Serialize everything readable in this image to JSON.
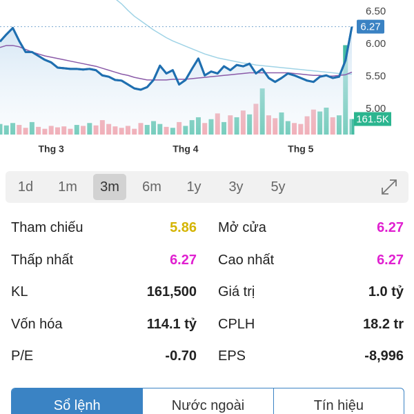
{
  "chart_data": {
    "type": "line",
    "categories": [
      null,
      null,
      null,
      null,
      null,
      null,
      null,
      null,
      "Thg 3",
      null,
      null,
      null,
      null,
      null,
      null,
      null,
      null,
      null,
      null,
      null,
      null,
      null,
      null,
      null,
      null,
      null,
      null,
      null,
      null,
      "Thg 4",
      null,
      null,
      null,
      null,
      null,
      null,
      null,
      null,
      null,
      null,
      null,
      null,
      null,
      null,
      null,
      null,
      null,
      "Thg 5",
      null,
      null,
      null,
      null,
      null,
      null,
      null,
      null
    ],
    "ylim": [
      4.61,
      6.68
    ],
    "yticks": [
      {
        "value": 5,
        "label": "5.00"
      },
      {
        "value": 5.5,
        "label": "5.50"
      },
      {
        "value": 6,
        "label": "6.00"
      },
      {
        "value": 6.5,
        "label": "6.50"
      }
    ],
    "y2lim": [
      0,
      1400000
    ],
    "grid": false,
    "series": [
      {
        "color": "#1f6fb0",
        "values": [
          6.04,
          6.15,
          6.25,
          6.05,
          5.88,
          5.88,
          5.82,
          5.76,
          5.72,
          5.64,
          5.63,
          5.62,
          5.62,
          5.61,
          5.62,
          5.6,
          5.52,
          5.5,
          5.45,
          5.44,
          5.38,
          5.32,
          5.3,
          5.34,
          5.45,
          5.67,
          5.55,
          5.6,
          5.38,
          5.45,
          5.62,
          5.78,
          5.52,
          5.58,
          5.55,
          5.66,
          5.6,
          5.68,
          5.66,
          5.7,
          5.55,
          5.62,
          5.48,
          5.42,
          5.48,
          5.55,
          5.52,
          5.48,
          5.44,
          5.42,
          5.5,
          5.52,
          5.48,
          5.5,
          5.75,
          6.27
        ]
      },
      {
        "color": "#8a5aa8",
        "values": [
          5.95,
          5.98,
          5.98,
          5.96,
          5.92,
          5.88,
          5.85,
          5.82,
          5.8,
          5.78,
          5.76,
          5.74,
          5.72,
          5.7,
          5.68,
          5.66,
          5.63,
          5.6,
          5.57,
          5.54,
          5.52,
          5.49,
          5.47,
          5.45,
          5.45,
          5.45,
          5.45,
          5.46,
          5.46,
          5.46,
          5.47,
          5.48,
          5.49,
          5.5,
          5.51,
          5.52,
          5.53,
          5.54,
          5.55,
          5.56,
          5.56,
          5.56,
          5.56,
          5.56,
          5.56,
          5.56,
          5.55,
          5.54,
          5.53,
          5.52,
          5.52,
          5.51,
          5.51,
          5.52,
          5.53,
          5.57
        ]
      },
      {
        "color": "#9fd3e6",
        "values": [
          null,
          null,
          null,
          null,
          null,
          null,
          null,
          null,
          null,
          null,
          null,
          null,
          null,
          null,
          null,
          null,
          null,
          null,
          6.7,
          6.62,
          6.52,
          6.43,
          6.36,
          6.29,
          6.22,
          6.16,
          6.1,
          6.05,
          6.01,
          5.97,
          5.93,
          5.89,
          5.85,
          5.82,
          5.79,
          5.77,
          5.75,
          5.73,
          5.71,
          5.7,
          5.68,
          5.67,
          5.66,
          5.65,
          5.64,
          5.63,
          5.62,
          5.61,
          5.6,
          5.59,
          5.58,
          5.57,
          5.56,
          5.55,
          5.54,
          5.54
        ]
      },
      {
        "type": "bar",
        "axis": "y2",
        "up_color": "#45bca3",
        "down_color": "#f2939d",
        "values": [
          110000,
          95000,
          120000,
          100000,
          70000,
          130000,
          80000,
          60000,
          90000,
          75000,
          85000,
          60000,
          100000,
          90000,
          120000,
          95000,
          150000,
          110000,
          85000,
          70000,
          90000,
          60000,
          120000,
          100000,
          140000,
          110000,
          80000,
          70000,
          130000,
          90000,
          150000,
          180000,
          120000,
          160000,
          220000,
          130000,
          200000,
          180000,
          250000,
          210000,
          320000,
          480000,
          200000,
          170000,
          230000,
          140000,
          120000,
          110000,
          190000,
          260000,
          240000,
          280000,
          180000,
          200000,
          930000,
          161500
        ],
        "value_labels": [
          null,
          null,
          null,
          null,
          null,
          null,
          null,
          null,
          null,
          null,
          null,
          null,
          null,
          null,
          null,
          null,
          null,
          null,
          null,
          null,
          null,
          null,
          null,
          null,
          null,
          null,
          null,
          null,
          null,
          null,
          null,
          null,
          null,
          null,
          null,
          null,
          null,
          null,
          null,
          null,
          null,
          null,
          null,
          null,
          null,
          null,
          null,
          null,
          null,
          null,
          null,
          null,
          null,
          null,
          null,
          "161.5K"
        ]
      }
    ]
  },
  "periods": {
    "items": [
      "1d",
      "1m",
      "3m",
      "6m",
      "1y",
      "3y",
      "5y"
    ],
    "selected": 2
  },
  "stats": {
    "rows": [
      [
        {
          "label": "Tham chiếu",
          "value": "5.86",
          "color": "#d4b400"
        },
        {
          "label": "Mở cửa",
          "value": "6.27",
          "color": "#e020d0"
        }
      ],
      [
        {
          "label": "Thấp nhất",
          "value": "6.27",
          "color": "#e020d0"
        },
        {
          "label": "Cao nhất",
          "value": "6.27",
          "color": "#e020d0"
        }
      ],
      [
        {
          "label": "KL",
          "value": "161,500",
          "color": "#222222"
        },
        {
          "label": "Giá trị",
          "value": "1.0 tỷ",
          "color": "#222222"
        }
      ],
      [
        {
          "label": "Vốn hóa",
          "value": "114.1 tỷ",
          "color": "#222222"
        },
        {
          "label": "CPLH",
          "value": "18.2 tr",
          "color": "#222222"
        }
      ],
      [
        {
          "label": "P/E",
          "value": "-0.70",
          "color": "#222222"
        },
        {
          "label": "EPS",
          "value": "-8,996",
          "color": "#222222"
        }
      ]
    ]
  },
  "tabs": {
    "items": [
      "Sổ lệnh",
      "Nước ngoài",
      "Tín hiệu"
    ],
    "active": 0
  }
}
